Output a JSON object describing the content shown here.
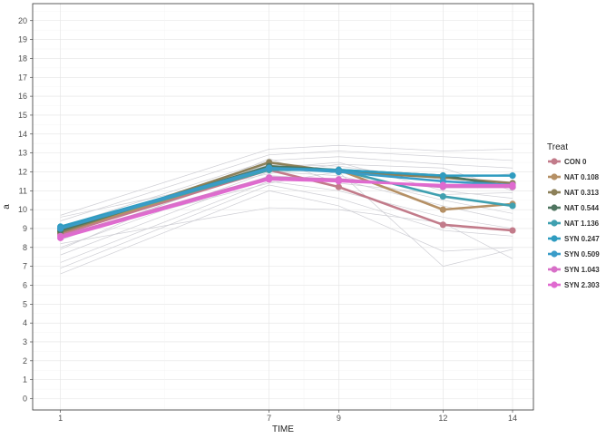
{
  "chart_data": {
    "type": "line",
    "xlabel": "TIME",
    "ylabel": "a",
    "x": [
      1,
      7,
      9,
      12,
      14
    ],
    "x_ticks": [
      "1",
      "7",
      "9",
      "12",
      "14"
    ],
    "xlim": [
      0.2,
      14.6
    ],
    "ylim": [
      -0.6,
      20.9
    ],
    "y_ticks": [
      "0",
      "1",
      "2",
      "3",
      "4",
      "5",
      "6",
      "7",
      "8",
      "9",
      "10",
      "11",
      "12",
      "13",
      "14",
      "15",
      "16",
      "17",
      "18",
      "19",
      "20"
    ],
    "grid": true,
    "legend": {
      "title": "Treat",
      "position": "right"
    },
    "series": [
      {
        "name": "CON 0",
        "color": "#c27b8a",
        "values": [
          8.7,
          12.1,
          11.2,
          9.2,
          8.9
        ]
      },
      {
        "name": "NAT 0.108",
        "color": "#b59065",
        "values": [
          8.8,
          12.2,
          12.1,
          10.0,
          10.3
        ]
      },
      {
        "name": "NAT 0.313",
        "color": "#8c8059",
        "values": [
          8.8,
          12.5,
          12.0,
          11.7,
          11.4
        ]
      },
      {
        "name": "NAT 0.544",
        "color": "#4f7560",
        "values": [
          8.9,
          12.3,
          12.1,
          11.8,
          11.2
        ]
      },
      {
        "name": "NAT 1.136",
        "color": "#3fa0b0",
        "values": [
          9.0,
          12.1,
          12.1,
          10.7,
          10.2
        ]
      },
      {
        "name": "SYN 0.247",
        "color": "#2f9cc0",
        "values": [
          9.1,
          12.2,
          12.1,
          11.8,
          11.8
        ]
      },
      {
        "name": "SYN 0.509",
        "color": "#3a9cc8",
        "values": [
          9.0,
          12.2,
          12.0,
          11.5,
          11.3
        ]
      },
      {
        "name": "SYN 1.043",
        "color": "#d870c8",
        "values": [
          8.6,
          11.7,
          11.6,
          11.2,
          11.2
        ]
      },
      {
        "name": "SYN 2.303",
        "color": "#e06ad0",
        "values": [
          8.5,
          11.6,
          11.5,
          11.3,
          11.3
        ]
      }
    ],
    "background_lines": [
      [
        9.7,
        13.2,
        13.4,
        13.1,
        13.2
      ],
      [
        9.4,
        12.9,
        13.1,
        12.8,
        12.6
      ],
      [
        9.1,
        12.6,
        12.8,
        12.4,
        12.2
      ],
      [
        8.8,
        12.4,
        12.3,
        11.6,
        11.9
      ],
      [
        8.4,
        12.2,
        12.5,
        11.0,
        10.6
      ],
      [
        8.0,
        12.0,
        11.8,
        10.5,
        9.8
      ],
      [
        7.6,
        11.8,
        11.6,
        10.2,
        9.4
      ],
      [
        7.2,
        11.5,
        11.0,
        9.6,
        9.0
      ],
      [
        6.9,
        11.3,
        10.6,
        8.9,
        8.6
      ],
      [
        6.6,
        11.0,
        10.2,
        7.8,
        8.0
      ],
      [
        8.6,
        11.4,
        12.0,
        7.0,
        7.9
      ],
      [
        8.2,
        10.1,
        10.0,
        9.3,
        7.4
      ],
      [
        9.6,
        11.9,
        12.4,
        12.2,
        11.0
      ],
      [
        7.9,
        12.7,
        11.4,
        10.8,
        10.9
      ]
    ]
  }
}
